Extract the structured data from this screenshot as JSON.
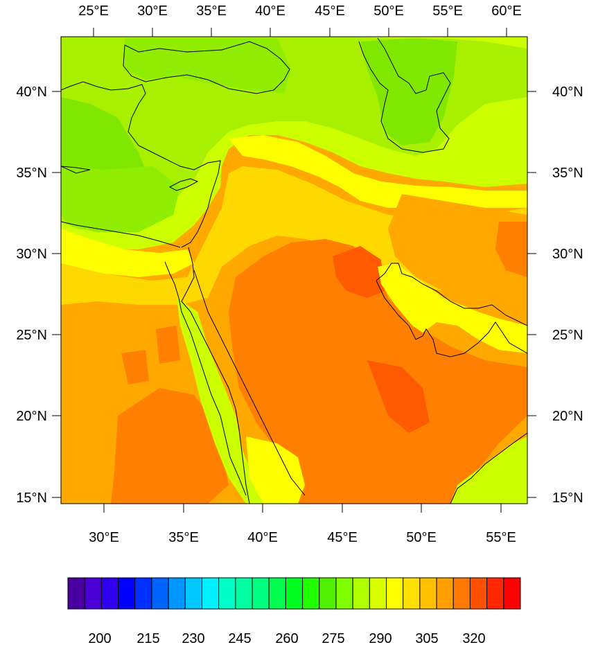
{
  "map": {
    "top_lon_labels": [
      "25°E",
      "30°E",
      "35°E",
      "40°E",
      "45°E",
      "50°E",
      "55°E",
      "60°E"
    ],
    "bottom_lon_labels": [
      "30°E",
      "35°E",
      "40°E",
      "45°E",
      "50°E",
      "55°E"
    ],
    "left_lat_labels": [
      "40°N",
      "35°N",
      "30°N",
      "25°N",
      "20°N",
      "15°N"
    ],
    "right_lat_labels": [
      "40°N",
      "35°N",
      "30°N",
      "25°N",
      "20°N",
      "15°N"
    ]
  },
  "colorbar": {
    "labels": [
      "200",
      "215",
      "230",
      "245",
      "260",
      "275",
      "290",
      "305",
      "320"
    ],
    "colors": [
      "#4a00a0",
      "#4c00d8",
      "#3000f0",
      "#0000ff",
      "#0030ff",
      "#0064ff",
      "#0096ff",
      "#00c8ff",
      "#00f0ff",
      "#00ffc8",
      "#00ffa0",
      "#00ff80",
      "#00ff50",
      "#00ff20",
      "#20ff00",
      "#50f000",
      "#80ff00",
      "#b0ff00",
      "#d8ff00",
      "#ffff00",
      "#ffe000",
      "#ffc000",
      "#ffa000",
      "#ff7800",
      "#ff5000",
      "#ff2800",
      "#ff0000"
    ]
  },
  "field_colors": {
    "green": "#7ee000",
    "light_green": "#a8f000",
    "yellow_green": "#ccff00",
    "yellow": "#ffff00",
    "gold": "#ffd800",
    "orange": "#ffa800",
    "dark_orange": "#ff8000",
    "red_orange": "#ff5a00"
  }
}
